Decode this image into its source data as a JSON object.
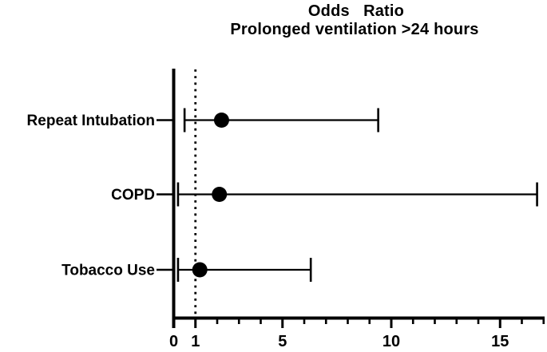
{
  "chart_data": {
    "type": "scatter",
    "variant": "forest-plot-horizontal-error-bars",
    "title_line1": "Odds   Ratio",
    "title_line2": "Prolonged ventilation >24 hours",
    "rows": [
      {
        "label": "Repeat Intubation",
        "odds_ratio": 2.2,
        "ci_low": 0.5,
        "ci_high": 9.4
      },
      {
        "label": "COPD",
        "odds_ratio": 2.1,
        "ci_low": 0.2,
        "ci_high": 16.7
      },
      {
        "label": "Tobacco Use",
        "odds_ratio": 1.2,
        "ci_low": 0.2,
        "ci_high": 6.3
      }
    ],
    "x_axis": {
      "min": 0,
      "max": 17,
      "major_ticks": [
        0,
        1,
        5,
        10,
        15
      ],
      "tick_labels": [
        "0",
        "1",
        "5",
        "10",
        "15"
      ],
      "minor_ticks": [
        2,
        3,
        4,
        6,
        7,
        8,
        9,
        11,
        12,
        13,
        14,
        16,
        17
      ],
      "reference_line_x": 1,
      "reference_line_style": "dotted"
    },
    "grid": false,
    "legend": false,
    "colors": {
      "foreground": "#000000",
      "background": "#ffffff"
    }
  }
}
